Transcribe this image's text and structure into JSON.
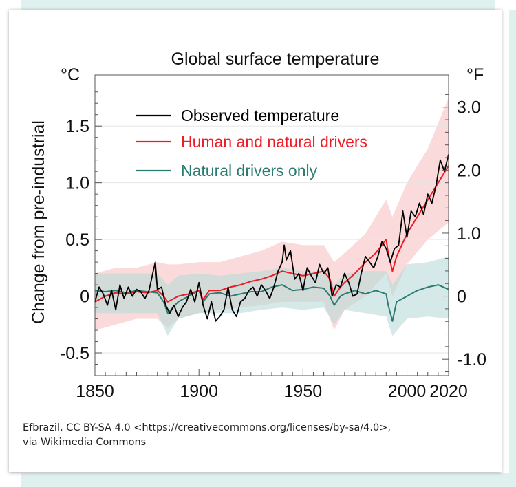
{
  "attribution": {
    "line1": "Efbrazil, CC BY-SA 4.0 <https://creativecommons.org/licenses/by-sa/4.0>,",
    "line2": "via Wikimedia Commons"
  },
  "chart_data": {
    "type": "line",
    "title": "Global surface temperature",
    "ylabel": "Change from pre-industrial",
    "left_unit": "°C",
    "right_unit": "°F",
    "xlim": [
      1850,
      2020
    ],
    "ylim": [
      -0.7,
      1.95
    ],
    "x_ticks": [
      {
        "value": 1850,
        "label": "1850"
      },
      {
        "value": 1900,
        "label": "1900"
      },
      {
        "value": 1950,
        "label": "1950"
      },
      {
        "value": 2000,
        "label": "2000"
      },
      {
        "value": 2020,
        "label": "2020"
      }
    ],
    "y_ticks_left": [
      {
        "value": -0.5,
        "label": "-0.5"
      },
      {
        "value": 0,
        "label": "0"
      },
      {
        "value": 0.5,
        "label": "0.5"
      },
      {
        "value": 1.0,
        "label": "1.0"
      },
      {
        "value": 1.5,
        "label": "1.5"
      }
    ],
    "y_ticks_right": [
      {
        "value": -1.0,
        "label": "-1.0"
      },
      {
        "value": 0,
        "label": "0"
      },
      {
        "value": 1.0,
        "label": "1.0"
      },
      {
        "value": 2.0,
        "label": "2.0"
      },
      {
        "value": 3.0,
        "label": "3.0"
      }
    ],
    "legend": [
      {
        "name": "Observed temperature",
        "color": "#000000"
      },
      {
        "name": "Human and natural drivers",
        "color": "#ee1c25"
      },
      {
        "name": "Natural drivers only",
        "color": "#2b7b72"
      }
    ],
    "colors": {
      "observed": "#000000",
      "human": "#ee1c25",
      "human_band": "#f7c6c6",
      "natural": "#2b7b72",
      "natural_band": "#b9dcd8",
      "grid": "#e6e6e6"
    },
    "series": [
      {
        "name": "Observed temperature",
        "x": [
          1850,
          1852,
          1854,
          1856,
          1858,
          1860,
          1862,
          1864,
          1866,
          1868,
          1870,
          1872,
          1874,
          1876,
          1878,
          1879,
          1880,
          1882,
          1884,
          1886,
          1888,
          1890,
          1892,
          1894,
          1896,
          1898,
          1900,
          1902,
          1904,
          1906,
          1908,
          1910,
          1912,
          1914,
          1916,
          1918,
          1920,
          1922,
          1924,
          1926,
          1928,
          1930,
          1932,
          1934,
          1936,
          1938,
          1940,
          1941,
          1942,
          1944,
          1946,
          1948,
          1950,
          1952,
          1954,
          1956,
          1958,
          1960,
          1962,
          1964,
          1966,
          1968,
          1970,
          1972,
          1974,
          1976,
          1978,
          1980,
          1982,
          1984,
          1986,
          1988,
          1990,
          1992,
          1994,
          1996,
          1998,
          2000,
          2002,
          2004,
          2006,
          2008,
          2010,
          2012,
          2014,
          2016,
          2018,
          2020
        ],
        "values": [
          -0.05,
          0.08,
          0.02,
          -0.08,
          0.05,
          -0.12,
          0.1,
          -0.02,
          0.08,
          0.0,
          0.06,
          0.04,
          -0.02,
          0.05,
          0.22,
          0.3,
          0.06,
          0.08,
          -0.08,
          -0.15,
          -0.08,
          -0.18,
          -0.1,
          -0.05,
          0.06,
          -0.05,
          0.12,
          -0.08,
          -0.2,
          -0.05,
          -0.22,
          -0.18,
          -0.12,
          0.08,
          -0.12,
          -0.18,
          -0.05,
          -0.02,
          0.05,
          0.08,
          0.0,
          0.1,
          0.05,
          -0.02,
          0.08,
          0.22,
          0.3,
          0.45,
          0.32,
          0.4,
          0.15,
          0.2,
          0.05,
          0.25,
          0.18,
          0.12,
          0.28,
          0.2,
          0.25,
          0.0,
          0.1,
          0.08,
          0.2,
          0.12,
          0.0,
          0.02,
          0.2,
          0.35,
          0.3,
          0.25,
          0.35,
          0.48,
          0.42,
          0.3,
          0.42,
          0.45,
          0.75,
          0.52,
          0.75,
          0.7,
          0.82,
          0.72,
          0.9,
          0.82,
          0.98,
          1.2,
          1.1,
          1.25
        ]
      },
      {
        "name": "Human and natural drivers",
        "x": [
          1850,
          1855,
          1860,
          1865,
          1870,
          1875,
          1880,
          1883,
          1885,
          1890,
          1895,
          1900,
          1902,
          1905,
          1910,
          1915,
          1920,
          1925,
          1930,
          1935,
          1940,
          1945,
          1950,
          1955,
          1960,
          1963,
          1965,
          1968,
          1970,
          1975,
          1980,
          1985,
          1990,
          1991,
          1993,
          1995,
          2000,
          2005,
          2010,
          2015,
          2020
        ],
        "values": [
          -0.05,
          0.0,
          0.03,
          0.02,
          0.04,
          0.03,
          0.05,
          0.0,
          -0.05,
          0.0,
          0.02,
          0.05,
          -0.03,
          0.05,
          0.05,
          0.08,
          0.1,
          0.13,
          0.15,
          0.18,
          0.22,
          0.2,
          0.18,
          0.2,
          0.22,
          0.15,
          0.0,
          0.08,
          0.12,
          0.2,
          0.3,
          0.38,
          0.5,
          0.38,
          0.22,
          0.35,
          0.55,
          0.7,
          0.85,
          1.0,
          1.15
        ]
      },
      {
        "name": "Natural drivers only",
        "x": [
          1850,
          1855,
          1860,
          1865,
          1870,
          1875,
          1880,
          1883,
          1885,
          1890,
          1895,
          1900,
          1902,
          1905,
          1910,
          1915,
          1920,
          1925,
          1930,
          1935,
          1940,
          1945,
          1950,
          1955,
          1960,
          1963,
          1965,
          1968,
          1970,
          1975,
          1980,
          1985,
          1990,
          1991,
          1993,
          1995,
          2000,
          2005,
          2010,
          2015,
          2020
        ],
        "values": [
          0.05,
          0.04,
          0.05,
          0.03,
          0.05,
          0.04,
          0.03,
          -0.05,
          -0.15,
          -0.05,
          0.0,
          0.05,
          -0.05,
          0.02,
          0.03,
          0.0,
          0.02,
          0.04,
          0.04,
          0.08,
          0.1,
          0.05,
          0.06,
          0.08,
          0.07,
          0.0,
          -0.08,
          0.0,
          0.02,
          0.05,
          0.02,
          0.05,
          0.02,
          -0.08,
          -0.22,
          -0.05,
          0.0,
          0.05,
          0.08,
          0.1,
          0.06
        ]
      }
    ],
    "bands": [
      {
        "name": "Human and natural drivers range",
        "x": [
          1850,
          1860,
          1870,
          1880,
          1885,
          1890,
          1900,
          1910,
          1920,
          1930,
          1940,
          1950,
          1960,
          1965,
          1970,
          1980,
          1990,
          1993,
          2000,
          2010,
          2020
        ],
        "lower": [
          -0.3,
          -0.25,
          -0.2,
          -0.2,
          -0.28,
          -0.2,
          -0.15,
          -0.12,
          -0.1,
          -0.08,
          -0.05,
          -0.05,
          -0.05,
          -0.3,
          -0.12,
          0.0,
          0.2,
          0.0,
          0.28,
          0.5,
          0.65
        ],
        "upper": [
          0.2,
          0.25,
          0.25,
          0.3,
          0.28,
          0.28,
          0.3,
          0.3,
          0.35,
          0.4,
          0.48,
          0.45,
          0.45,
          0.3,
          0.38,
          0.55,
          0.85,
          0.7,
          1.0,
          1.3,
          1.75
        ]
      },
      {
        "name": "Natural drivers only range",
        "x": [
          1850,
          1860,
          1870,
          1880,
          1885,
          1890,
          1900,
          1910,
          1920,
          1930,
          1940,
          1950,
          1960,
          1965,
          1970,
          1980,
          1990,
          1993,
          2000,
          2010,
          2020
        ],
        "lower": [
          -0.15,
          -0.15,
          -0.15,
          -0.15,
          -0.35,
          -0.2,
          -0.15,
          -0.15,
          -0.15,
          -0.12,
          -0.1,
          -0.12,
          -0.1,
          -0.25,
          -0.12,
          -0.15,
          -0.18,
          -0.35,
          -0.2,
          -0.18,
          -0.2
        ],
        "upper": [
          0.2,
          0.2,
          0.2,
          0.2,
          0.1,
          0.18,
          0.2,
          0.18,
          0.2,
          0.22,
          0.25,
          0.22,
          0.22,
          0.1,
          0.2,
          0.22,
          0.22,
          0.1,
          0.28,
          0.3,
          0.35
        ]
      }
    ]
  }
}
